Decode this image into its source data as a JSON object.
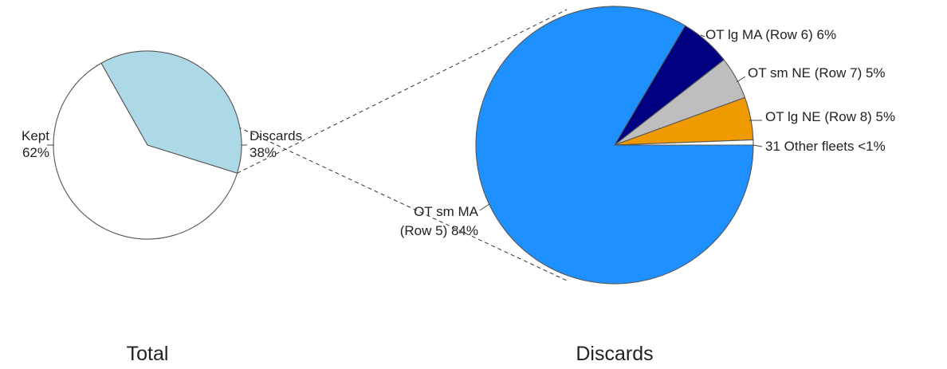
{
  "chart_data": [
    {
      "type": "pie",
      "title": "Total",
      "slices": [
        {
          "label": [
            "Kept",
            "62%"
          ],
          "value": 62,
          "color": "#ffffff"
        },
        {
          "label": [
            "Discards",
            "38%"
          ],
          "value": 38,
          "color": "#add8e6"
        }
      ]
    },
    {
      "type": "pie",
      "title": "Discards",
      "slices": [
        {
          "label": [
            "OT sm MA",
            "(Row 5) 84%"
          ],
          "value": 84,
          "color": "#1e90ff"
        },
        {
          "label": [
            "OT lg MA (Row 6) 6%"
          ],
          "value": 6,
          "color": "#000080"
        },
        {
          "label": [
            "OT sm NE (Row 7) 5%"
          ],
          "value": 5,
          "color": "#bebebe"
        },
        {
          "label": [
            "OT lg NE (Row 8) 5%"
          ],
          "value": 5,
          "color": "#ee9a00"
        },
        {
          "label": [
            "31 Other fleets <1%"
          ],
          "value": 0.6,
          "color": "#ffffff"
        }
      ]
    }
  ]
}
